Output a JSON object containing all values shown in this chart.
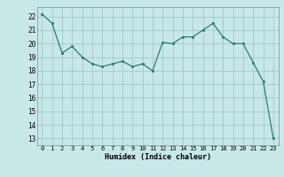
{
  "x": [
    0,
    1,
    2,
    3,
    4,
    5,
    6,
    7,
    8,
    9,
    10,
    11,
    12,
    13,
    14,
    15,
    16,
    17,
    18,
    19,
    20,
    21,
    22,
    23
  ],
  "y": [
    22.2,
    21.5,
    19.3,
    19.8,
    19.0,
    18.5,
    18.3,
    18.5,
    18.7,
    18.3,
    18.5,
    18.0,
    20.1,
    20.0,
    20.5,
    20.5,
    21.0,
    21.5,
    20.5,
    20.0,
    20.0,
    18.6,
    17.2,
    13.0
  ],
  "line_color": "#2e7d6e",
  "marker_color": "#2e7d6e",
  "bg_color": "#c8e8e8",
  "grid_color": "#a0c8c8",
  "xlabel": "Humidex (Indice chaleur)",
  "ylim": [
    12.5,
    22.7
  ],
  "xlim": [
    -0.5,
    23.5
  ],
  "yticks": [
    13,
    14,
    15,
    16,
    17,
    18,
    19,
    20,
    21,
    22
  ],
  "xticks": [
    0,
    1,
    2,
    3,
    4,
    5,
    6,
    7,
    8,
    9,
    10,
    11,
    12,
    13,
    14,
    15,
    16,
    17,
    18,
    19,
    20,
    21,
    22,
    23
  ]
}
